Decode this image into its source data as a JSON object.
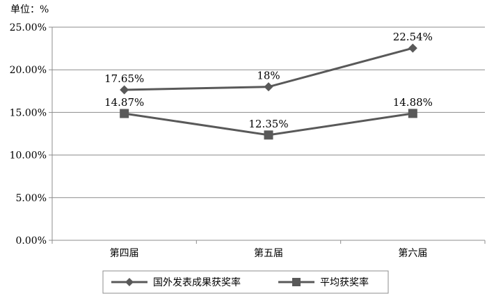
{
  "chart_data": {
    "type": "line",
    "unit_label": "单位：%",
    "categories": [
      "第四届",
      "第五届",
      "第六届"
    ],
    "y_ticks": [
      "25.00%",
      "20.00%",
      "15.00%",
      "10.00%",
      "5.00%",
      "0.00%"
    ],
    "ylim": [
      0,
      25
    ],
    "grid": true,
    "legend_position": "bottom",
    "series": [
      {
        "name": "国外发表成果获奖率",
        "marker": "diamond",
        "color": "#595959",
        "values": [
          17.65,
          18,
          22.54
        ],
        "labels": [
          "17.65%",
          "18%",
          "22.54%"
        ]
      },
      {
        "name": "平均获奖率",
        "marker": "square",
        "color": "#595959",
        "values": [
          14.87,
          12.35,
          14.88
        ],
        "labels": [
          "14.87%",
          "12.35%",
          "14.88%"
        ]
      }
    ]
  }
}
